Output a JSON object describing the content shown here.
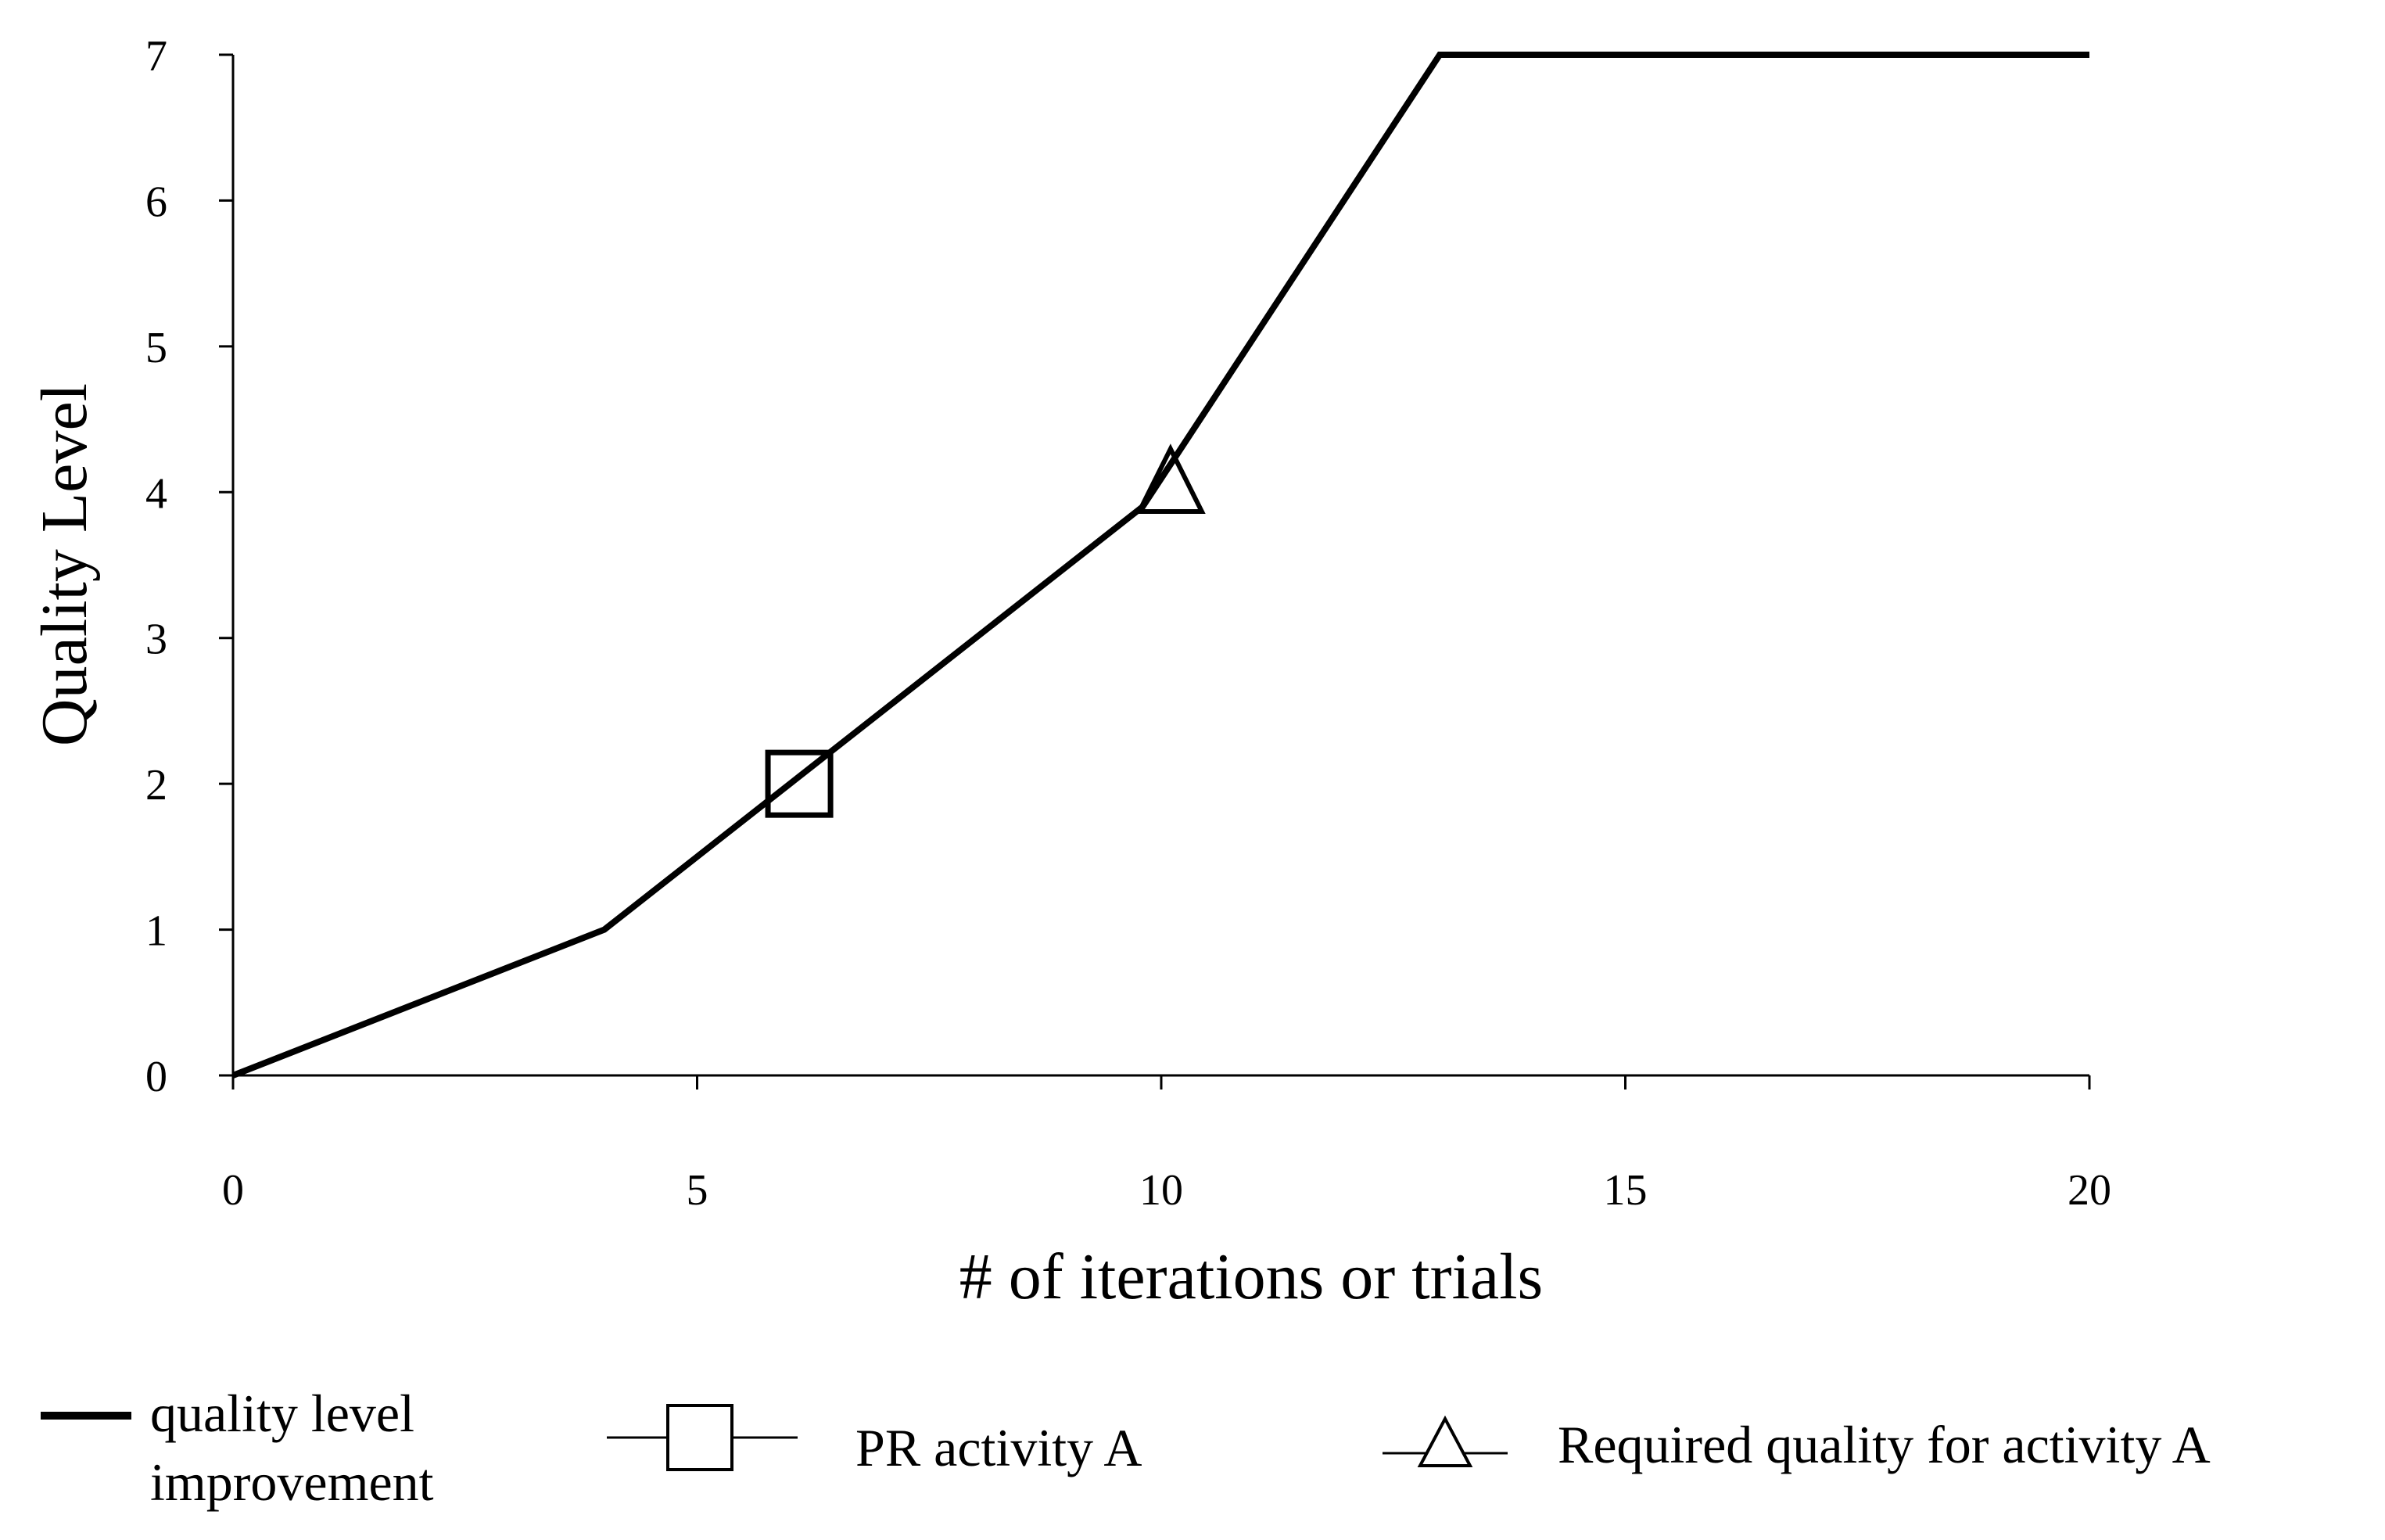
{
  "chart_data": {
    "type": "line",
    "xlabel": "# of iterations or trials",
    "ylabel": "Quality Level",
    "xlim": [
      0,
      20
    ],
    "ylim": [
      0,
      7
    ],
    "x_ticks": [
      0,
      5,
      10,
      15,
      20
    ],
    "y_ticks": [
      0,
      1,
      2,
      3,
      4,
      5,
      6,
      7
    ],
    "grid": false,
    "legend_position": "bottom",
    "series": [
      {
        "name": "quality level improvement",
        "color": "#000000",
        "x": [
          0,
          4,
          9.8,
          13,
          20
        ],
        "y": [
          0,
          1,
          3.9,
          7,
          7
        ]
      }
    ],
    "markers": [
      {
        "name": "PR activity A",
        "shape": "square",
        "x": 6.1,
        "y": 2.0
      },
      {
        "name": "Required quality for activity A",
        "shape": "triangle",
        "x": 10.1,
        "y": 4.05
      }
    ],
    "legend": {
      "line_label_lines": [
        "quality level",
        "improvement"
      ],
      "square_label": "PR activity A",
      "triangle_label": "Required quality for activity A"
    }
  }
}
